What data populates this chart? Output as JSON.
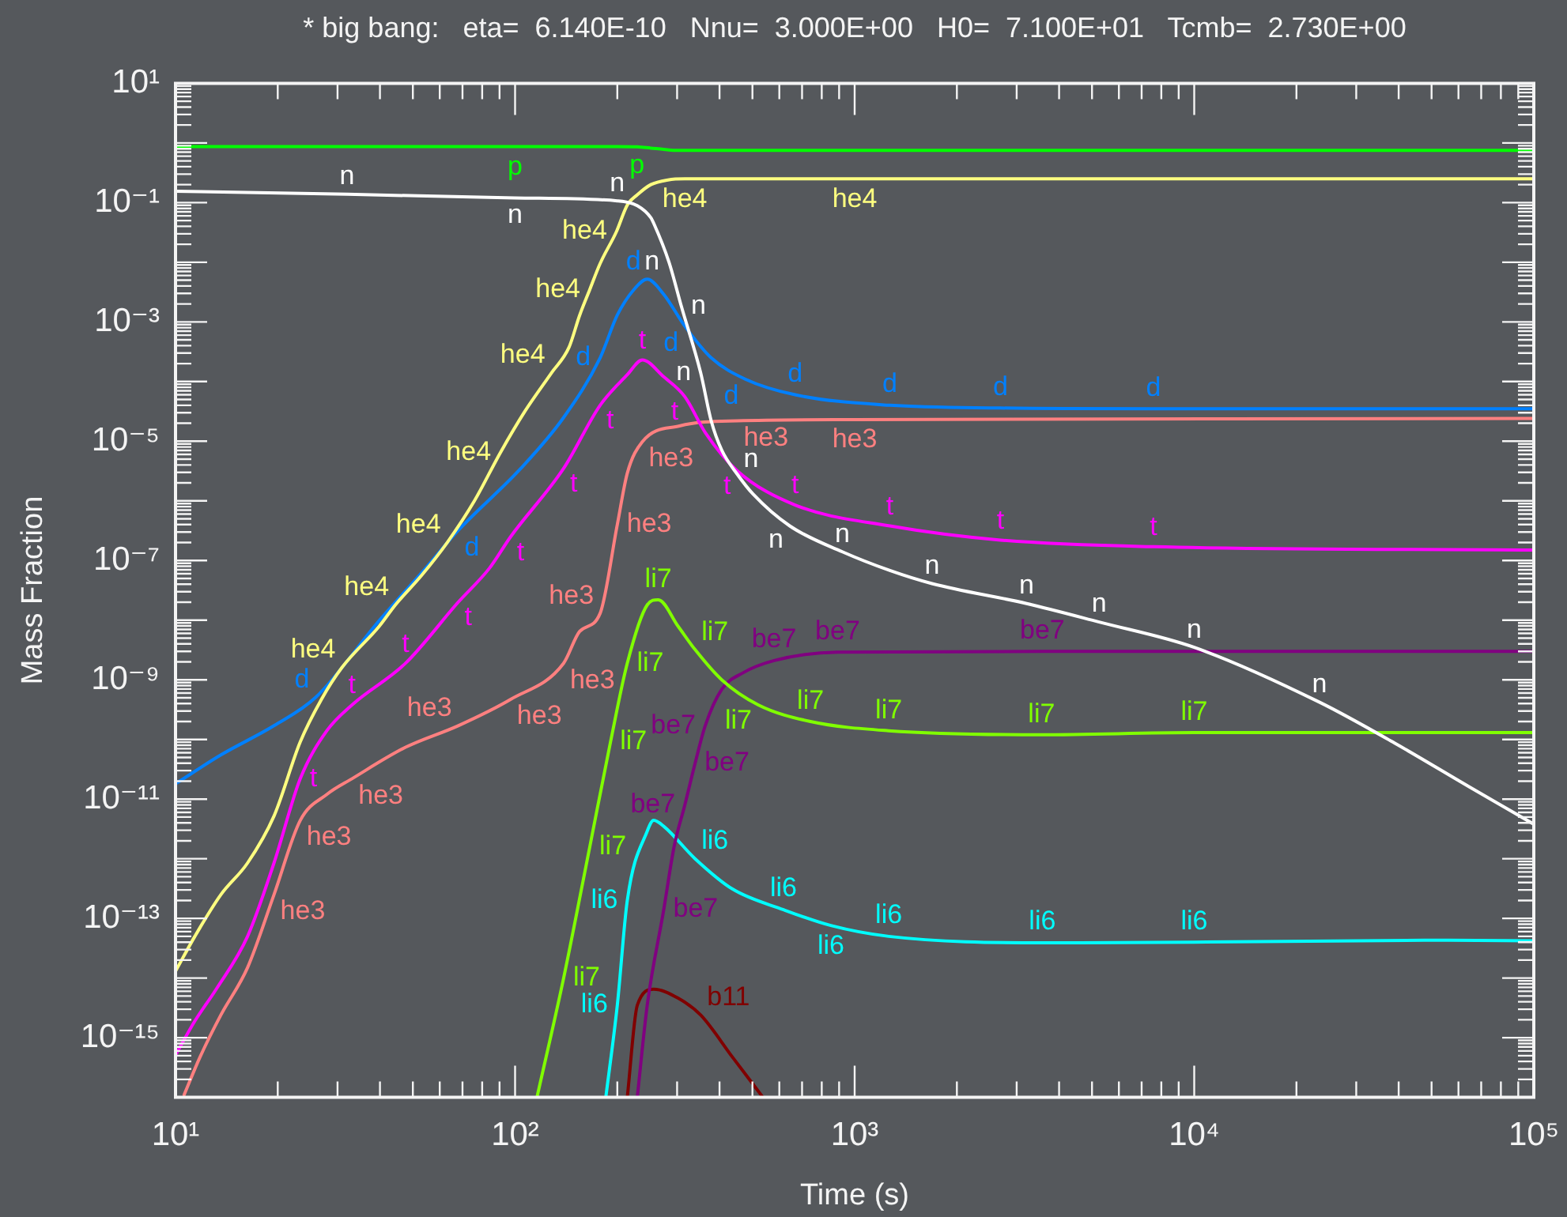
{
  "chart_data": {
    "type": "line",
    "title": "* big bang:   eta=  6.140E-10   Nnu=  3.000E+00   H0=  7.100E+01   Tcmb=  2.730E+00",
    "xlabel": "Time (s)",
    "ylabel": "Mass Fraction",
    "log": "xy",
    "xlim": [
      10,
      100000
    ],
    "ylim": [
      1e-16,
      10
    ],
    "xticks": [
      {
        "value": 10,
        "label": "10¹"
      },
      {
        "value": 100,
        "label": "10²"
      },
      {
        "value": 1000,
        "label": "10³"
      },
      {
        "value": 10000,
        "label": "10⁴"
      },
      {
        "value": 100000,
        "label": "10⁵"
      },
      {
        "value": 20,
        "label": null
      },
      {
        "value": 30,
        "label": null
      },
      {
        "value": 40,
        "label": null
      },
      {
        "value": 50,
        "label": null
      },
      {
        "value": 60,
        "label": null
      },
      {
        "value": 70,
        "label": null
      },
      {
        "value": 80,
        "label": null
      },
      {
        "value": 90,
        "label": null
      },
      {
        "value": 200,
        "label": null
      },
      {
        "value": 300,
        "label": null
      },
      {
        "value": 400,
        "label": null
      },
      {
        "value": 500,
        "label": null
      },
      {
        "value": 600,
        "label": null
      },
      {
        "value": 700,
        "label": null
      },
      {
        "value": 800,
        "label": null
      },
      {
        "value": 900,
        "label": null
      },
      {
        "value": 2000,
        "label": null
      },
      {
        "value": 3000,
        "label": null
      },
      {
        "value": 4000,
        "label": null
      },
      {
        "value": 5000,
        "label": null
      },
      {
        "value": 6000,
        "label": null
      },
      {
        "value": 7000,
        "label": null
      },
      {
        "value": 8000,
        "label": null
      },
      {
        "value": 9000,
        "label": null
      },
      {
        "value": 20000,
        "label": null
      },
      {
        "value": 30000,
        "label": null
      },
      {
        "value": 40000,
        "label": null
      },
      {
        "value": 50000,
        "label": null
      },
      {
        "value": 60000,
        "label": null
      },
      {
        "value": 70000,
        "label": null
      },
      {
        "value": 80000,
        "label": null
      },
      {
        "value": 90000,
        "label": null
      }
    ],
    "yticks": [
      {
        "value": 10,
        "label": "10¹"
      },
      {
        "value": 1,
        "label": null
      },
      {
        "value": 0.1,
        "label": "10⁻¹"
      },
      {
        "value": 0.01,
        "label": null
      },
      {
        "value": 0.001,
        "label": "10⁻³"
      },
      {
        "value": 0.0001,
        "label": null
      },
      {
        "value": 1e-05,
        "label": "10⁻⁵"
      },
      {
        "value": 1e-06,
        "label": null
      },
      {
        "value": 1e-07,
        "label": "10⁻⁷"
      },
      {
        "value": 1e-08,
        "label": null
      },
      {
        "value": 1e-09,
        "label": "10⁻⁹"
      },
      {
        "value": 1e-10,
        "label": null
      },
      {
        "value": 1e-11,
        "label": "10⁻¹¹"
      },
      {
        "value": 1e-12,
        "label": null
      },
      {
        "value": 1e-13,
        "label": "10⁻¹³"
      },
      {
        "value": 1e-14,
        "label": null
      },
      {
        "value": 1e-15,
        "label": "10⁻¹⁵"
      },
      {
        "value": 1e-16,
        "label": null
      },
      {
        "value": 2,
        "label": null
      },
      {
        "value": 3,
        "label": null
      },
      {
        "value": 4,
        "label": null
      },
      {
        "value": 5,
        "label": null
      },
      {
        "value": 6,
        "label": null
      },
      {
        "value": 7,
        "label": null
      },
      {
        "value": 8,
        "label": null
      },
      {
        "value": 9,
        "label": null
      },
      {
        "value": 0.2,
        "label": null
      },
      {
        "value": 0.3,
        "label": null
      },
      {
        "value": 0.4,
        "label": null
      },
      {
        "value": 0.5,
        "label": null
      },
      {
        "value": 0.6,
        "label": null
      },
      {
        "value": 0.7,
        "label": null
      },
      {
        "value": 0.8,
        "label": null
      },
      {
        "value": 0.9,
        "label": null
      },
      {
        "value": 0.02,
        "label": null
      },
      {
        "value": 0.03,
        "label": null
      },
      {
        "value": 0.04,
        "label": null
      },
      {
        "value": 0.05,
        "label": null
      },
      {
        "value": 0.06,
        "label": null
      },
      {
        "value": 0.07,
        "label": null
      },
      {
        "value": 0.08,
        "label": null
      },
      {
        "value": 0.09,
        "label": null
      },
      {
        "value": 0.002,
        "label": null
      },
      {
        "value": 0.003,
        "label": null
      },
      {
        "value": 0.004,
        "label": null
      },
      {
        "value": 0.005,
        "label": null
      },
      {
        "value": 0.006,
        "label": null
      },
      {
        "value": 0.007,
        "label": null
      },
      {
        "value": 0.008,
        "label": null
      },
      {
        "value": 0.009,
        "label": null
      },
      {
        "value": 0.0002,
        "label": null
      },
      {
        "value": 0.0003,
        "label": null
      },
      {
        "value": 0.0004,
        "label": null
      },
      {
        "value": 0.0005,
        "label": null
      },
      {
        "value": 0.0006,
        "label": null
      },
      {
        "value": 0.0007,
        "label": null
      },
      {
        "value": 0.0008,
        "label": null
      },
      {
        "value": 0.0009,
        "label": null
      },
      {
        "value": 2e-05,
        "label": null
      },
      {
        "value": 3e-05,
        "label": null
      },
      {
        "value": 4e-05,
        "label": null
      },
      {
        "value": 5e-05,
        "label": null
      },
      {
        "value": 6e-05,
        "label": null
      },
      {
        "value": 7e-05,
        "label": null
      },
      {
        "value": 8e-05,
        "label": null
      },
      {
        "value": 9e-05,
        "label": null
      },
      {
        "value": 2e-06,
        "label": null
      },
      {
        "value": 3e-06,
        "label": null
      },
      {
        "value": 4e-06,
        "label": null
      },
      {
        "value": 5e-06,
        "label": null
      },
      {
        "value": 6e-06,
        "label": null
      },
      {
        "value": 7e-06,
        "label": null
      },
      {
        "value": 8e-06,
        "label": null
      },
      {
        "value": 9e-06,
        "label": null
      },
      {
        "value": 2e-07,
        "label": null
      },
      {
        "value": 3e-07,
        "label": null
      },
      {
        "value": 4e-07,
        "label": null
      },
      {
        "value": 5e-07,
        "label": null
      },
      {
        "value": 6e-07,
        "label": null
      },
      {
        "value": 7e-07,
        "label": null
      },
      {
        "value": 8e-07,
        "label": null
      },
      {
        "value": 9e-07,
        "label": null
      },
      {
        "value": 2e-08,
        "label": null
      },
      {
        "value": 3e-08,
        "label": null
      },
      {
        "value": 4e-08,
        "label": null
      },
      {
        "value": 5e-08,
        "label": null
      },
      {
        "value": 6e-08,
        "label": null
      },
      {
        "value": 7e-08,
        "label": null
      },
      {
        "value": 8e-08,
        "label": null
      },
      {
        "value": 9e-08,
        "label": null
      },
      {
        "value": 2e-09,
        "label": null
      },
      {
        "value": 3e-09,
        "label": null
      },
      {
        "value": 4e-09,
        "label": null
      },
      {
        "value": 5e-09,
        "label": null
      },
      {
        "value": 6e-09,
        "label": null
      },
      {
        "value": 7e-09,
        "label": null
      },
      {
        "value": 8e-09,
        "label": null
      },
      {
        "value": 9e-09,
        "label": null
      },
      {
        "value": 2e-10,
        "label": null
      },
      {
        "value": 3e-10,
        "label": null
      },
      {
        "value": 4e-10,
        "label": null
      },
      {
        "value": 5e-10,
        "label": null
      },
      {
        "value": 6e-10,
        "label": null
      },
      {
        "value": 7e-10,
        "label": null
      },
      {
        "value": 8e-10,
        "label": null
      },
      {
        "value": 9e-10,
        "label": null
      },
      {
        "value": 2e-11,
        "label": null
      },
      {
        "value": 3e-11,
        "label": null
      },
      {
        "value": 4e-11,
        "label": null
      },
      {
        "value": 5e-11,
        "label": null
      },
      {
        "value": 6e-11,
        "label": null
      },
      {
        "value": 7e-11,
        "label": null
      },
      {
        "value": 8e-11,
        "label": null
      },
      {
        "value": 9e-11,
        "label": null
      },
      {
        "value": 2e-12,
        "label": null
      },
      {
        "value": 3e-12,
        "label": null
      },
      {
        "value": 4e-12,
        "label": null
      },
      {
        "value": 5e-12,
        "label": null
      },
      {
        "value": 6e-12,
        "label": null
      },
      {
        "value": 7e-12,
        "label": null
      },
      {
        "value": 8e-12,
        "label": null
      },
      {
        "value": 9e-12,
        "label": null
      },
      {
        "value": 2e-13,
        "label": null
      },
      {
        "value": 3e-13,
        "label": null
      },
      {
        "value": 4e-13,
        "label": null
      },
      {
        "value": 5e-13,
        "label": null
      },
      {
        "value": 6e-13,
        "label": null
      },
      {
        "value": 7e-13,
        "label": null
      },
      {
        "value": 8e-13,
        "label": null
      },
      {
        "value": 9e-13,
        "label": null
      },
      {
        "value": 2e-14,
        "label": null
      },
      {
        "value": 3e-14,
        "label": null
      },
      {
        "value": 4e-14,
        "label": null
      },
      {
        "value": 5e-14,
        "label": null
      },
      {
        "value": 6e-14,
        "label": null
      },
      {
        "value": 7e-14,
        "label": null
      },
      {
        "value": 8e-14,
        "label": null
      },
      {
        "value": 9e-14,
        "label": null
      },
      {
        "value": 2e-15,
        "label": null
      },
      {
        "value": 3e-15,
        "label": null
      },
      {
        "value": 4e-15,
        "label": null
      },
      {
        "value": 5e-15,
        "label": null
      },
      {
        "value": 6e-15,
        "label": null
      },
      {
        "value": 7e-15,
        "label": null
      },
      {
        "value": 8e-15,
        "label": null
      },
      {
        "value": 9e-15,
        "label": null
      },
      {
        "value": 2e-16,
        "label": null
      },
      {
        "value": 3e-16,
        "label": null
      },
      {
        "value": 4e-16,
        "label": null
      },
      {
        "value": 5e-16,
        "label": null
      },
      {
        "value": 6e-16,
        "label": null
      },
      {
        "value": 7e-16,
        "label": null
      },
      {
        "value": 8e-16,
        "label": null
      },
      {
        "value": 9e-16,
        "label": null
      }
    ],
    "series": [
      {
        "name": "p",
        "color": "#00ff00",
        "x": [
          10,
          100,
          200,
          229,
          251,
          274,
          302,
          1000,
          10000,
          100000
        ],
        "values": [
          0.87,
          0.87,
          0.87,
          0.86,
          0.82,
          0.78,
          0.75,
          0.75,
          0.75,
          0.75
        ]
      },
      {
        "name": "n",
        "color": "#ffffff",
        "x": [
          10,
          32,
          100,
          200,
          229,
          251,
          256,
          284,
          309,
          352,
          378,
          406,
          451,
          502,
          644,
          920,
          1270,
          1690,
          3210,
          5250,
          10000,
          23400,
          38900,
          64600,
          100000
        ],
        "values": [
          0.155,
          0.138,
          0.12,
          0.107,
          0.089,
          0.056,
          0.045,
          0.01,
          0.0018,
          0.00014,
          2.2e-05,
          7.1e-06,
          2.8e-06,
          1.3e-06,
          3.8e-07,
          1.4e-07,
          6.8e-08,
          4.1e-08,
          1.9e-08,
          9.3e-09,
          3.5e-09,
          4.2e-10,
          8.7e-11,
          1.6e-11,
          3.8e-12
        ]
      },
      {
        "name": "he4",
        "color": "#ffff80",
        "x": [
          10,
          11.4,
          13.6,
          16.3,
          19.5,
          23.3,
          26.9,
          30.9,
          39.8,
          44.4,
          53,
          63.1,
          75.9,
          90.6,
          107,
          128,
          144,
          155,
          166,
          178,
          199,
          214,
          229,
          251,
          282,
          316,
          1000,
          100000
        ],
        "values": [
          1.3e-14,
          5e-14,
          2.5e-13,
          8.5e-13,
          5.2e-12,
          9.1e-11,
          4.7e-10,
          1.6e-09,
          7.9e-09,
          1.8e-08,
          5.6e-08,
          2e-07,
          1e-06,
          6.5e-06,
          3.2e-05,
          0.00014,
          0.00037,
          0.0013,
          0.0035,
          0.0095,
          0.033,
          0.091,
          0.135,
          0.2,
          0.24,
          0.25,
          0.25,
          0.25
        ]
      },
      {
        "name": "d",
        "color": "#0080ff",
        "x": [
          10,
          13.6,
          19.5,
          25.9,
          39.8,
          55,
          68,
          104,
          139,
          178,
          200,
          224,
          245,
          274,
          316,
          378,
          476,
          668,
          1270,
          2690,
          7590,
          100000
        ],
        "values": [
          1.8e-11,
          5.5e-11,
          1.7e-10,
          5.1e-10,
          9.8e-09,
          7.9e-08,
          3.2e-07,
          3.5e-06,
          2.5e-05,
          0.00025,
          0.0013,
          0.0035,
          0.0052,
          0.0029,
          0.00085,
          0.00025,
          0.00011,
          6e-05,
          4e-05,
          3.6e-05,
          3.5e-05,
          3.5e-05
        ]
      },
      {
        "name": "t",
        "color": "#ff00ff",
        "x": [
          10,
          11.4,
          13.2,
          16.3,
          19.5,
          23.3,
          27.9,
          33.1,
          47.6,
          68,
          84,
          97,
          139,
          178,
          214,
          237,
          274,
          316,
          363,
          451,
          668,
          1270,
          2690,
          7590,
          100000
        ],
        "values": [
          5.1e-16,
          1.9e-15,
          6.6e-15,
          5e-14,
          8.5e-13,
          2.2e-11,
          1.4e-10,
          3.8e-10,
          1.9e-09,
          2e-08,
          7.4e-08,
          2.5e-07,
          3.5e-06,
          4e-05,
          0.00013,
          0.00023,
          0.00012,
          5.6e-05,
          1.4e-05,
          3.2e-06,
          8.5e-07,
          3.8e-07,
          2.2e-07,
          1.7e-07,
          1.5e-07
        ]
      },
      {
        "name": "he3",
        "color": "#ff8080",
        "x": [
          10.6,
          11.8,
          13.6,
          16.3,
          19.5,
          23.3,
          27.9,
          33.1,
          47.6,
          68,
          97,
          139,
          155,
          178,
          200,
          214,
          237,
          305,
          451,
          1000,
          100000
        ],
        "values": [
          1.1e-16,
          4.7e-16,
          2.4e-15,
          1.5e-14,
          2.5e-13,
          4.4e-12,
          1.2e-11,
          2.2e-11,
          7.4e-11,
          1.7e-10,
          4.7e-10,
          1.9e-09,
          6.5e-09,
          1.3e-08,
          4e-07,
          2.9e-06,
          9.8e-06,
          1.8e-05,
          2.2e-05,
          2.3e-05,
          2.4e-05
        ]
      },
      {
        "name": "li7",
        "color": "#80ff00",
        "x": [
          116,
          139,
          166,
          191,
          214,
          245,
          264,
          302,
          339,
          406,
          520,
          741,
          1260,
          3550,
          10000,
          100000
        ],
        "values": [
          1e-16,
          1e-14,
          1.6e-12,
          9.1e-11,
          1.9e-09,
          1.8e-08,
          2.2e-08,
          7.9e-09,
          3.2e-09,
          1e-09,
          3.8e-10,
          2e-10,
          1.4e-10,
          1.2e-10,
          1.3e-10,
          1.3e-10
        ]
      },
      {
        "name": "be7",
        "color": "#800080",
        "x": [
          229,
          245,
          274,
          294,
          316,
          339,
          363,
          406,
          468,
          579,
          891,
          3570,
          100000
        ],
        "values": [
          1e-16,
          3.5e-15,
          1.4e-13,
          1.6e-12,
          7.9e-12,
          4e-11,
          1.7e-10,
          6.9e-10,
          1.3e-09,
          2.1e-09,
          2.9e-09,
          3e-09,
          3e-09
        ]
      },
      {
        "name": "li6",
        "color": "#00ffff",
        "x": [
          185,
          200,
          214,
          245,
          256,
          274,
          339,
          437,
          617,
          851,
          1260,
          3570,
          10000,
          50100,
          100000
        ],
        "values": [
          1e-16,
          3.5e-15,
          2e-13,
          2.9e-12,
          4.4e-12,
          3.5e-12,
          1e-12,
          3.1e-13,
          1.4e-13,
          7.6e-14,
          5e-14,
          3.9e-14,
          4e-14,
          4.3e-14,
          4.2e-14
        ]
      },
      {
        "name": "b11",
        "color": "#800000",
        "x": [
          214,
          229,
          256,
          302,
          352,
          437,
          537
        ],
        "values": [
          1e-16,
          3.5e-15,
          6.5e-15,
          4.6e-15,
          2.4e-15,
          4.7e-16,
          1e-16
        ]
      }
    ]
  }
}
